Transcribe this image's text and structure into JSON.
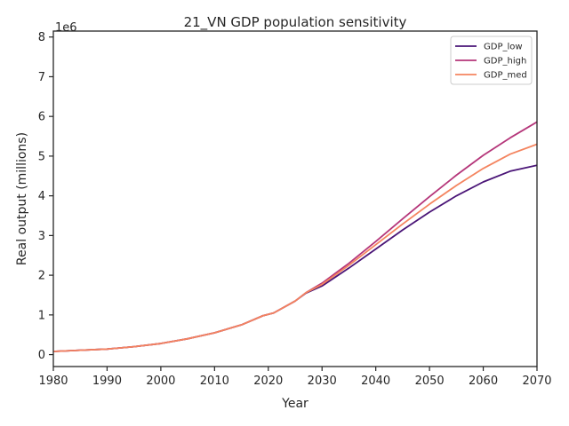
{
  "chart_data": {
    "type": "line",
    "title": "21_VN GDP population sensitivity",
    "xlabel": "Year",
    "ylabel": "Real output (millions)",
    "y_multiplier_label": "1e6",
    "xlim": [
      1980,
      2070
    ],
    "ylim": [
      -300000,
      8150000
    ],
    "xticks": [
      1980,
      1990,
      2000,
      2010,
      2020,
      2030,
      2040,
      2050,
      2060,
      2070
    ],
    "yticks": [
      0,
      1,
      2,
      3,
      4,
      5,
      6,
      7,
      8
    ],
    "grid": false,
    "legend_position": "top-right",
    "series": [
      {
        "name": "GDP_low",
        "color": "#4a1577",
        "x": [
          1980,
          1985,
          1990,
          1995,
          2000,
          2005,
          2010,
          2015,
          2019,
          2021,
          2025,
          2027,
          2030,
          2035,
          2040,
          2045,
          2050,
          2055,
          2060,
          2065,
          2070
        ],
        "y": [
          80000,
          110000,
          140000,
          200000,
          280000,
          400000,
          550000,
          750000,
          980000,
          1050000,
          1350000,
          1550000,
          1730000,
          2180000,
          2660000,
          3140000,
          3590000,
          4000000,
          4350000,
          4620000,
          4770000
        ]
      },
      {
        "name": "GDP_high",
        "color": "#b5367a",
        "x": [
          1980,
          1985,
          1990,
          1995,
          2000,
          2005,
          2010,
          2015,
          2019,
          2021,
          2025,
          2027,
          2030,
          2035,
          2040,
          2045,
          2050,
          2055,
          2060,
          2065,
          2070
        ],
        "y": [
          80000,
          110000,
          140000,
          200000,
          280000,
          400000,
          550000,
          750000,
          980000,
          1050000,
          1350000,
          1560000,
          1800000,
          2300000,
          2850000,
          3420000,
          3980000,
          4520000,
          5020000,
          5460000,
          5860000
        ]
      },
      {
        "name": "GDP_med",
        "color": "#f4845f",
        "x": [
          1980,
          1985,
          1990,
          1995,
          2000,
          2005,
          2010,
          2015,
          2019,
          2021,
          2025,
          2027,
          2030,
          2035,
          2040,
          2045,
          2050,
          2055,
          2060,
          2065,
          2070
        ],
        "y": [
          80000,
          110000,
          140000,
          200000,
          280000,
          400000,
          550000,
          750000,
          980000,
          1050000,
          1350000,
          1560000,
          1770000,
          2250000,
          2770000,
          3290000,
          3790000,
          4260000,
          4690000,
          5050000,
          5300000
        ]
      }
    ]
  }
}
